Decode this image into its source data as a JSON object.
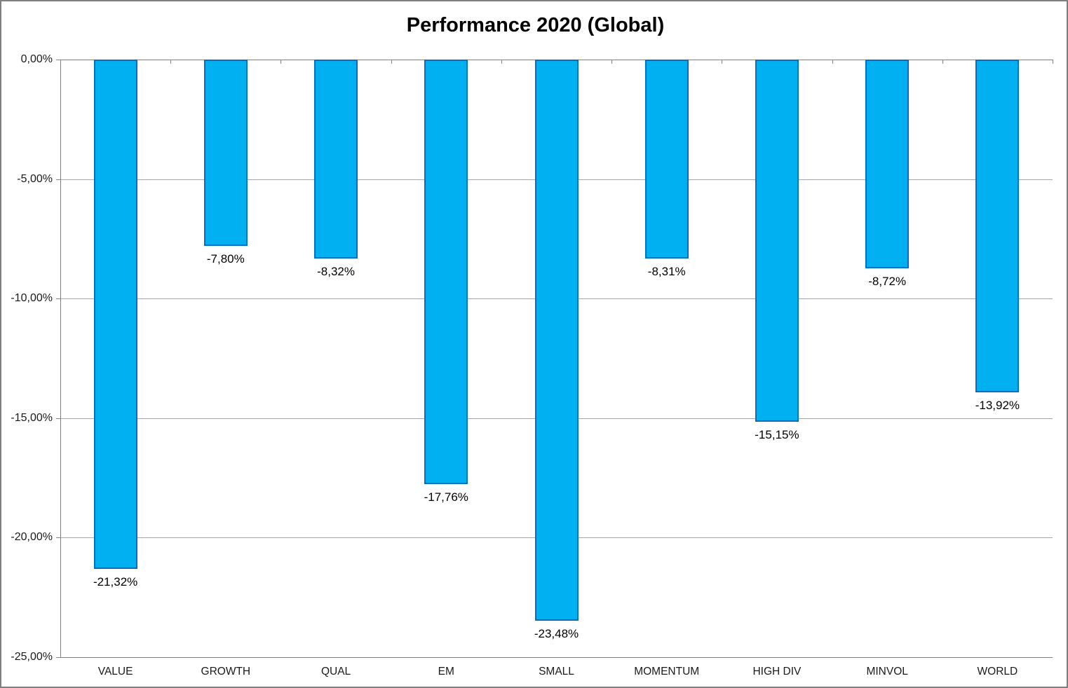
{
  "chart_data": {
    "type": "bar",
    "title": "Performance 2020 (Global)",
    "categories": [
      "VALUE",
      "GROWTH",
      "QUAL",
      "EM",
      "SMALL",
      "MOMENTUM",
      "HIGH DIV",
      "MINVOL",
      "WORLD"
    ],
    "values": [
      -21.32,
      -7.8,
      -8.32,
      -17.76,
      -23.48,
      -8.31,
      -15.15,
      -8.72,
      -13.92
    ],
    "value_labels": [
      "-21,32%",
      "-7,80%",
      "-8,32%",
      "-17,76%",
      "-23,48%",
      "-8,31%",
      "-15,15%",
      "-8,72%",
      "-13,92%"
    ],
    "xlabel": "",
    "ylabel": "",
    "ylim": [
      -25,
      0
    ],
    "y_axis": {
      "ticks": [
        {
          "label": "0,00%",
          "value": 0
        },
        {
          "label": "-5,00%",
          "value": -5
        },
        {
          "label": "-10,00%",
          "value": -10
        },
        {
          "label": "-15,00%",
          "value": -15
        },
        {
          "label": "-20,00%",
          "value": -20
        },
        {
          "label": "-25,00%",
          "value": -25
        }
      ]
    },
    "grid": true,
    "legend_position": "none",
    "colors": {
      "bar_fill": "#00B0F0",
      "bar_border": "#0070C0",
      "gridline": "#A6A6A6",
      "axis_line": "#808080",
      "zero_line": "#808080",
      "title_text": "#000000",
      "axis_label_text": "#1A1A1A",
      "data_label_text": "#000000",
      "background": "#FFFFFF",
      "outer_border": "#7F7F7F"
    }
  }
}
